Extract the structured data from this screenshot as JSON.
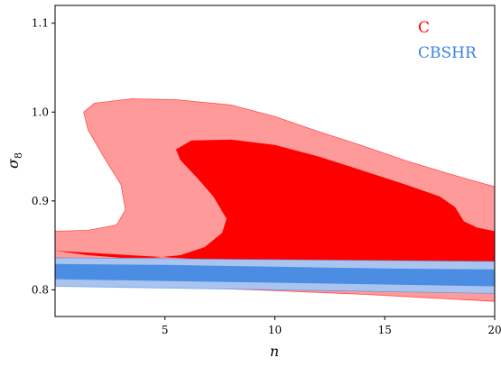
{
  "chart_data": {
    "type": "contour",
    "xlabel": "n",
    "ylabel": "σ8",
    "xlim": [
      0,
      20
    ],
    "ylim": [
      0.77,
      1.12
    ],
    "xticks": [
      5,
      10,
      15,
      20
    ],
    "xtick_labels": [
      "5",
      "10",
      "15",
      "20"
    ],
    "yticks": [
      0.8,
      0.9,
      1.0,
      1.1
    ],
    "ytick_labels": [
      "0.8",
      "0.9",
      "1.0",
      "1.1"
    ],
    "legend_position": "top-right",
    "series": [
      {
        "name": "C",
        "color": "#ff0000",
        "outer_color": "#ff9a9a",
        "outer_contour": [
          [
            0,
            0.866
          ],
          [
            1.5,
            0.867
          ],
          [
            2.8,
            0.873
          ],
          [
            3.2,
            0.89
          ],
          [
            3.0,
            0.918
          ],
          [
            2.2,
            0.95
          ],
          [
            1.5,
            0.98
          ],
          [
            1.3,
            1.0
          ],
          [
            1.8,
            1.01
          ],
          [
            3.5,
            1.015
          ],
          [
            5.5,
            1.014
          ],
          [
            8,
            1.008
          ],
          [
            10,
            0.995
          ],
          [
            12,
            0.978
          ],
          [
            14,
            0.962
          ],
          [
            16,
            0.945
          ],
          [
            18,
            0.93
          ],
          [
            20,
            0.916
          ],
          [
            20,
            0.787
          ],
          [
            17,
            0.791
          ],
          [
            14,
            0.795
          ],
          [
            10,
            0.799
          ],
          [
            6,
            0.803
          ],
          [
            3,
            0.806
          ],
          [
            0,
            0.809
          ]
        ],
        "inner_contour": [
          [
            0,
            0.844
          ],
          [
            1.5,
            0.839
          ],
          [
            3,
            0.836
          ],
          [
            4.5,
            0.836
          ],
          [
            5.7,
            0.839
          ],
          [
            6.8,
            0.848
          ],
          [
            7.6,
            0.864
          ],
          [
            7.8,
            0.88
          ],
          [
            7.2,
            0.905
          ],
          [
            6.5,
            0.925
          ],
          [
            5.7,
            0.946
          ],
          [
            5.5,
            0.958
          ],
          [
            6.2,
            0.968
          ],
          [
            8,
            0.969
          ],
          [
            10,
            0.963
          ],
          [
            12,
            0.95
          ],
          [
            14,
            0.934
          ],
          [
            16,
            0.918
          ],
          [
            17.5,
            0.905
          ],
          [
            18.2,
            0.893
          ],
          [
            18.6,
            0.877
          ],
          [
            19.2,
            0.87
          ],
          [
            20,
            0.866
          ],
          [
            20,
            0.831
          ],
          [
            15,
            0.832
          ],
          [
            10,
            0.832
          ],
          [
            5,
            0.832
          ],
          [
            0,
            0.833
          ],
          [
            0,
            0.824
          ],
          [
            6,
            0.821
          ],
          [
            12,
            0.818
          ],
          [
            16,
            0.816
          ],
          [
            20,
            0.815
          ]
        ]
      },
      {
        "name": "CBSHR",
        "color": "#3a84e0",
        "outer_color": "#a8c4ef",
        "outer_contour": [
          [
            0,
            0.836
          ],
          [
            5,
            0.835
          ],
          [
            10,
            0.834
          ],
          [
            15,
            0.833
          ],
          [
            20,
            0.832
          ],
          [
            20,
            0.796
          ],
          [
            15,
            0.798
          ],
          [
            10,
            0.8
          ],
          [
            5,
            0.802
          ],
          [
            0,
            0.804
          ]
        ],
        "inner_contour": [
          [
            0,
            0.829
          ],
          [
            5,
            0.828
          ],
          [
            10,
            0.826
          ],
          [
            15,
            0.824
          ],
          [
            20,
            0.823
          ],
          [
            20,
            0.804
          ],
          [
            15,
            0.806
          ],
          [
            10,
            0.808
          ],
          [
            5,
            0.81
          ],
          [
            0,
            0.812
          ]
        ]
      }
    ]
  }
}
